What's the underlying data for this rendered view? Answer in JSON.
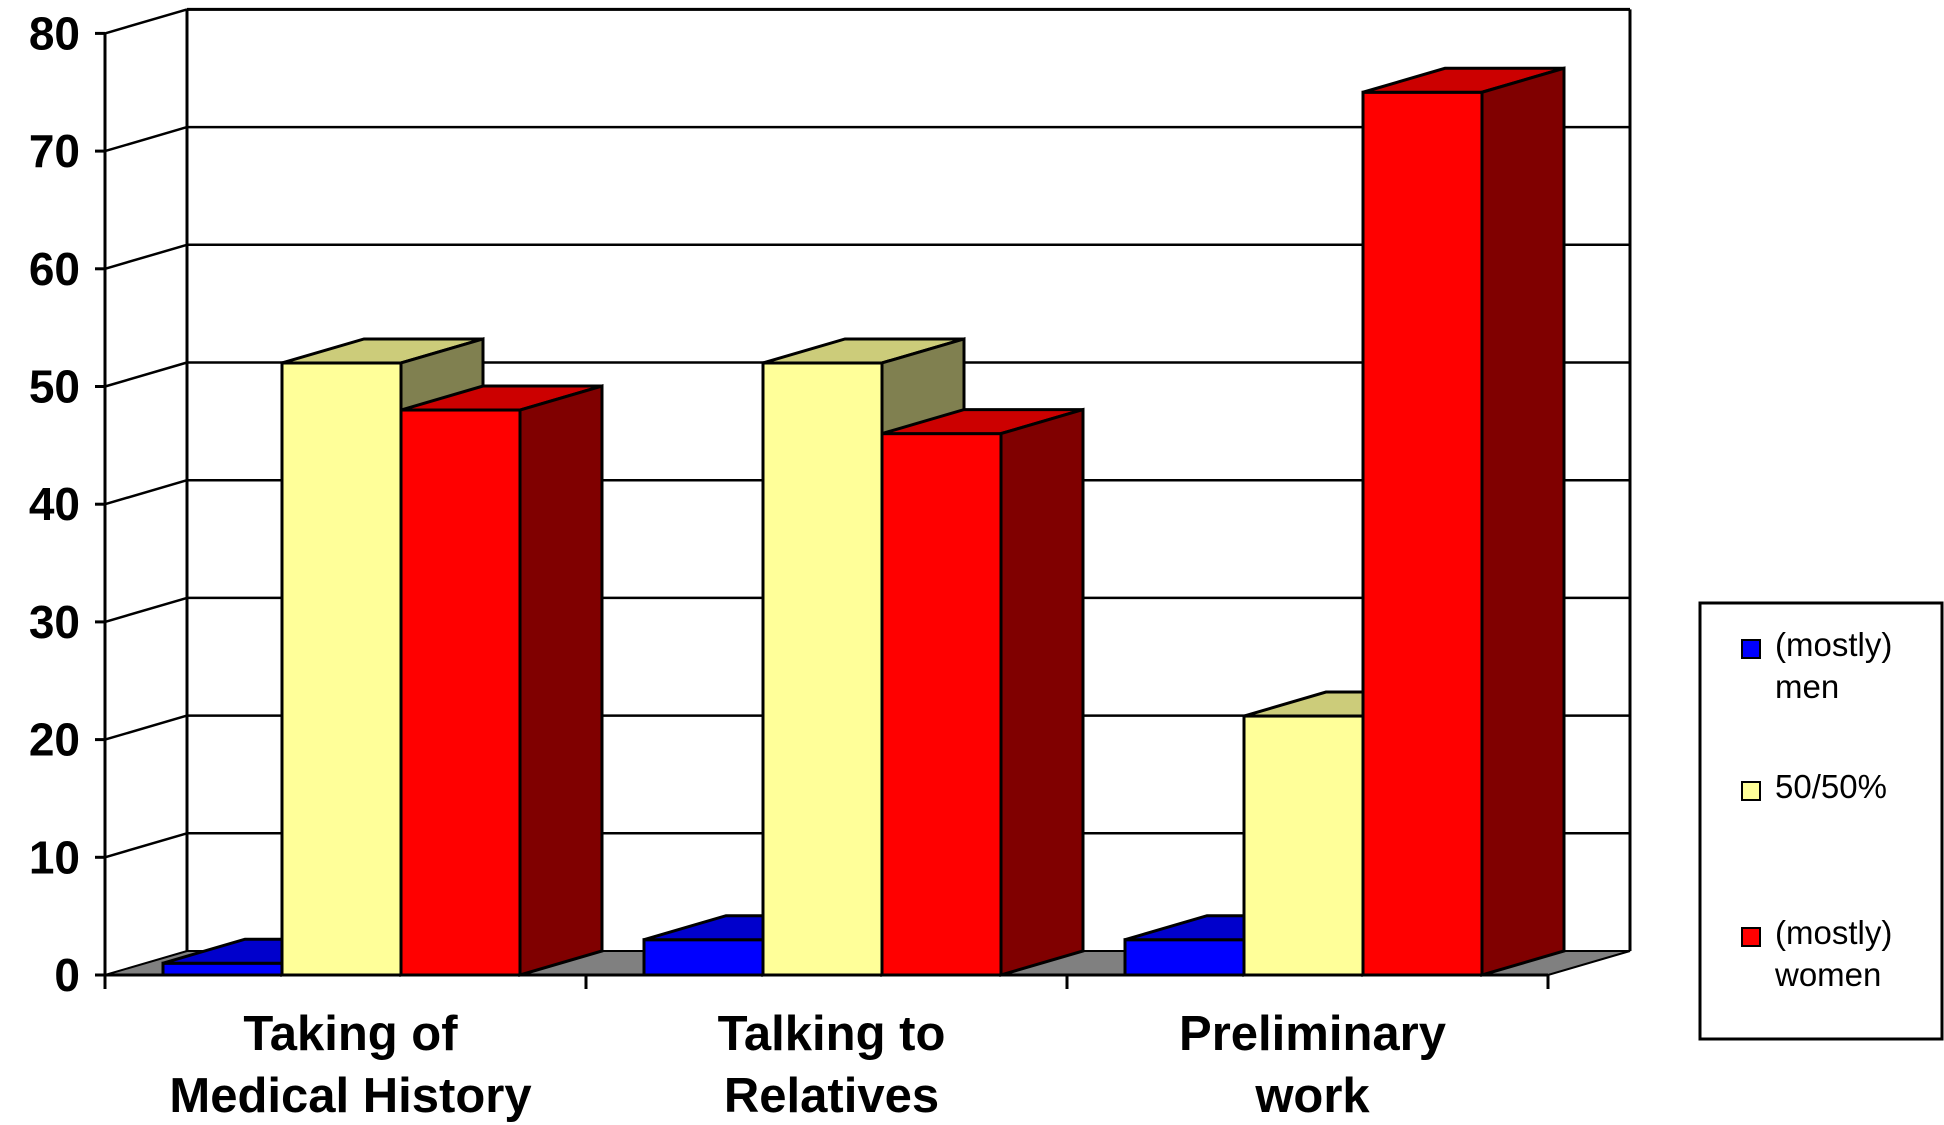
{
  "chart_data": {
    "type": "bar",
    "title": "",
    "xlabel": "",
    "ylabel": "",
    "ylim": [
      0,
      80
    ],
    "yticks": [
      "0",
      "10",
      "20",
      "30",
      "40",
      "50",
      "60",
      "70",
      "80"
    ],
    "grid": true,
    "legend_position": "right",
    "categories": [
      [
        "Taking of",
        "Medical History"
      ],
      [
        "Talking to",
        "Relatives"
      ],
      [
        "Preliminary",
        "work"
      ]
    ],
    "series": [
      {
        "name": [
          "(mostly)",
          "men"
        ],
        "values": [
          1,
          3,
          3
        ],
        "color": "#0000ff",
        "top_color": "#0000cc",
        "side_color": "#000080"
      },
      {
        "name": [
          "50/50%"
        ],
        "values": [
          52,
          52,
          22
        ],
        "color": "#ffff99",
        "top_color": "#cccc7a",
        "side_color": "#808050"
      },
      {
        "name": [
          "(mostly)",
          "women"
        ],
        "values": [
          48,
          46,
          75
        ],
        "color": "#ff0000",
        "top_color": "#cc0000",
        "side_color": "#800000"
      }
    ]
  }
}
